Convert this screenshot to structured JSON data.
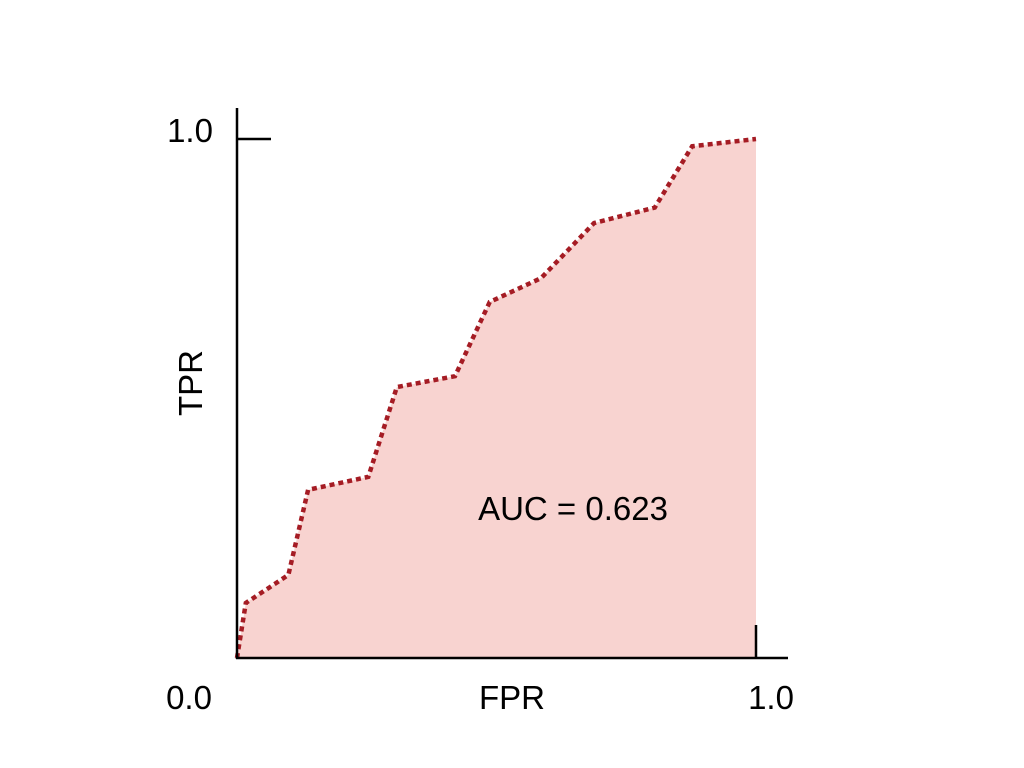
{
  "chart_data": {
    "type": "area",
    "title": "",
    "xlabel": "FPR",
    "ylabel": "TPR",
    "xlim": [
      0,
      1
    ],
    "ylim": [
      0,
      1
    ],
    "x_tick_labels": [
      "0.0",
      "1.0"
    ],
    "y_tick_labels": [
      "1.0"
    ],
    "grid": false,
    "annotation": "AUC = 0.623",
    "line_color": "#a51c24",
    "fill_color": "#f8d3d0",
    "line_style": "dotted",
    "x": [
      0.0,
      0.017,
      0.099,
      0.137,
      0.253,
      0.308,
      0.42,
      0.487,
      0.586,
      0.688,
      0.805,
      0.877,
      1.0
    ],
    "y": [
      0.0,
      0.106,
      0.16,
      0.324,
      0.349,
      0.522,
      0.543,
      0.686,
      0.732,
      0.838,
      0.868,
      0.986,
      1.0
    ]
  }
}
